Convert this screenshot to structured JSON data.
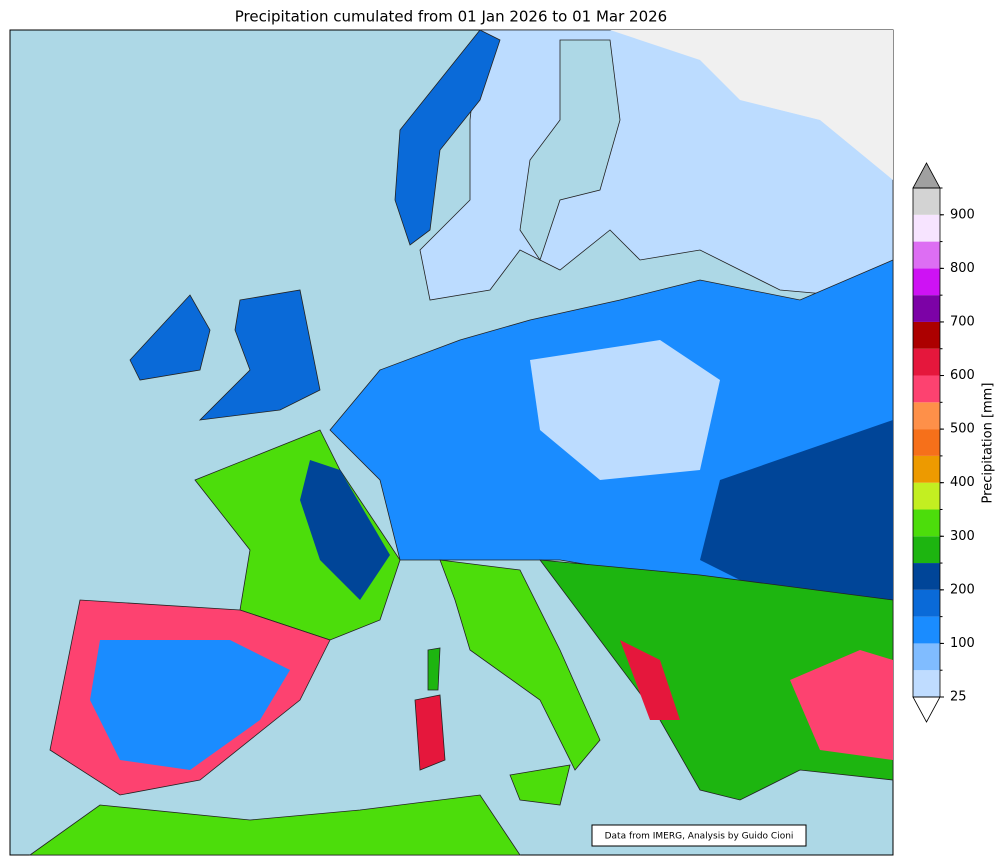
{
  "title": "Precipitation cumulated from 01 Jan 2026 to 01 Mar 2026",
  "credit": "Data from IMERG, Analysis by Guido Cioni",
  "colorbar": {
    "label": "Precipitation [mm]",
    "levels": [
      25,
      50,
      100,
      150,
      200,
      250,
      300,
      350,
      400,
      450,
      500,
      550,
      600,
      650,
      700,
      750,
      800,
      850,
      900,
      950
    ],
    "colors": [
      "#bfdcff",
      "#80bcff",
      "#1a8cff",
      "#0a6ad8",
      "#004598",
      "#1db510",
      "#4cdd0b",
      "#c3ef21",
      "#ed9a00",
      "#f6701a",
      "#fe9049",
      "#fd4270",
      "#e5173c",
      "#ac0000",
      "#7c02a6",
      "#ce12f4",
      "#dd6ef3",
      "#f7e4ff",
      "#d3d3d3"
    ],
    "under_color": "#ffffff",
    "over_color": "#a0a0a0",
    "ticks": [
      25,
      100,
      200,
      300,
      400,
      500,
      600,
      700,
      800,
      900
    ]
  }
}
